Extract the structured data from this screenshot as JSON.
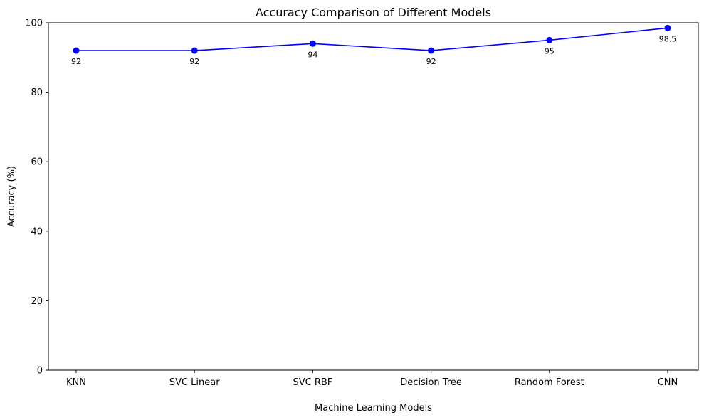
{
  "chart_data": {
    "type": "line",
    "title": "Accuracy Comparison of Different Models",
    "xlabel": "Machine Learning Models",
    "ylabel": "Accuracy (%)",
    "categories": [
      "KNN",
      "SVC Linear",
      "SVC RBF",
      "Decision Tree",
      "Random Forest",
      "CNN"
    ],
    "series": [
      {
        "values": [
          92,
          92,
          94,
          92,
          95,
          98.5
        ],
        "color": "#0000ff",
        "marker": "circle"
      }
    ],
    "data_labels": [
      "92",
      "92",
      "94",
      "92",
      "95",
      "98.5"
    ],
    "ylim": [
      0,
      100
    ],
    "yticks": [
      0,
      20,
      40,
      60,
      80,
      100
    ],
    "ytick_labels": [
      "0",
      "20",
      "40",
      "60",
      "80",
      "100"
    ],
    "grid": false,
    "legend": false
  }
}
